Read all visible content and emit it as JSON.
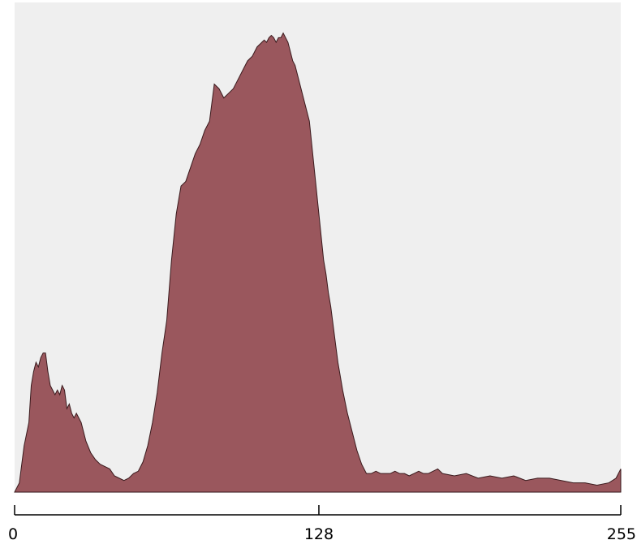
{
  "chart_data": {
    "type": "area",
    "title": "",
    "xlabel": "",
    "ylabel": "",
    "xlim": [
      0,
      255
    ],
    "ylim": [
      0,
      100
    ],
    "x_ticks": [
      {
        "value": 0,
        "label": "0"
      },
      {
        "value": 128,
        "label": "128"
      },
      {
        "value": 255,
        "label": "255"
      }
    ],
    "grid": false,
    "colors": {
      "plot_background": "#efefef",
      "fill": "#9a575d",
      "stroke": "#3a1a1d",
      "axis": "#000000"
    },
    "series": [
      {
        "x": [
          0,
          2,
          4,
          6,
          7,
          8,
          9,
          10,
          11,
          12,
          13,
          14,
          15,
          16,
          17,
          18,
          19,
          20,
          21,
          22,
          23,
          24,
          25,
          26,
          27,
          28,
          29,
          30,
          32,
          34,
          36,
          38,
          40,
          42,
          44,
          46,
          48,
          50,
          52,
          54,
          56,
          58,
          60,
          62,
          64,
          66,
          68,
          70,
          72,
          74,
          76,
          78,
          80,
          82,
          84,
          86,
          88,
          90,
          92,
          94,
          96,
          98,
          100,
          102,
          104,
          105,
          106,
          107,
          108,
          109,
          110,
          111,
          112,
          113,
          114,
          115,
          116,
          117,
          118,
          119,
          120,
          121,
          122,
          123,
          124,
          125,
          126,
          127,
          128,
          129,
          130,
          131,
          132,
          133,
          134,
          135,
          136,
          138,
          140,
          142,
          144,
          146,
          148,
          150,
          152,
          154,
          156,
          158,
          160,
          162,
          164,
          166,
          168,
          170,
          172,
          174,
          176,
          178,
          180,
          185,
          190,
          195,
          200,
          205,
          210,
          215,
          220,
          225,
          230,
          235,
          240,
          245,
          250,
          253,
          255
        ],
        "y": [
          0,
          2,
          10,
          15,
          23,
          26,
          28,
          27,
          29,
          30,
          30,
          26,
          23,
          22,
          21,
          22,
          21,
          23,
          22,
          18,
          19,
          17,
          16,
          17,
          16,
          15,
          13,
          11,
          8.5,
          7,
          6,
          5.5,
          5,
          3.5,
          3,
          2.5,
          3,
          4,
          4.5,
          6.5,
          10,
          15,
          21.5,
          30,
          37,
          50,
          60,
          66,
          67,
          70,
          73,
          75,
          78,
          80,
          88,
          87,
          85,
          86,
          87,
          89,
          91,
          93,
          94,
          96,
          97,
          97.5,
          97,
          98,
          98.5,
          98,
          97,
          98,
          98,
          99,
          98,
          97,
          95,
          93,
          92,
          90,
          88,
          86,
          84,
          82,
          80,
          75,
          70,
          65,
          60,
          55,
          50,
          47,
          43,
          40,
          36,
          32,
          28,
          22,
          17,
          13,
          9,
          6,
          4,
          4,
          4.5,
          4,
          4,
          4,
          4.5,
          4,
          4,
          3.5,
          4,
          4.5,
          4,
          4,
          4.5,
          5,
          4,
          3.5,
          4,
          3,
          3.5,
          3,
          3.5,
          2.5,
          3,
          3,
          2.5,
          2,
          2,
          1.5,
          2,
          3,
          5
        ]
      }
    ]
  }
}
